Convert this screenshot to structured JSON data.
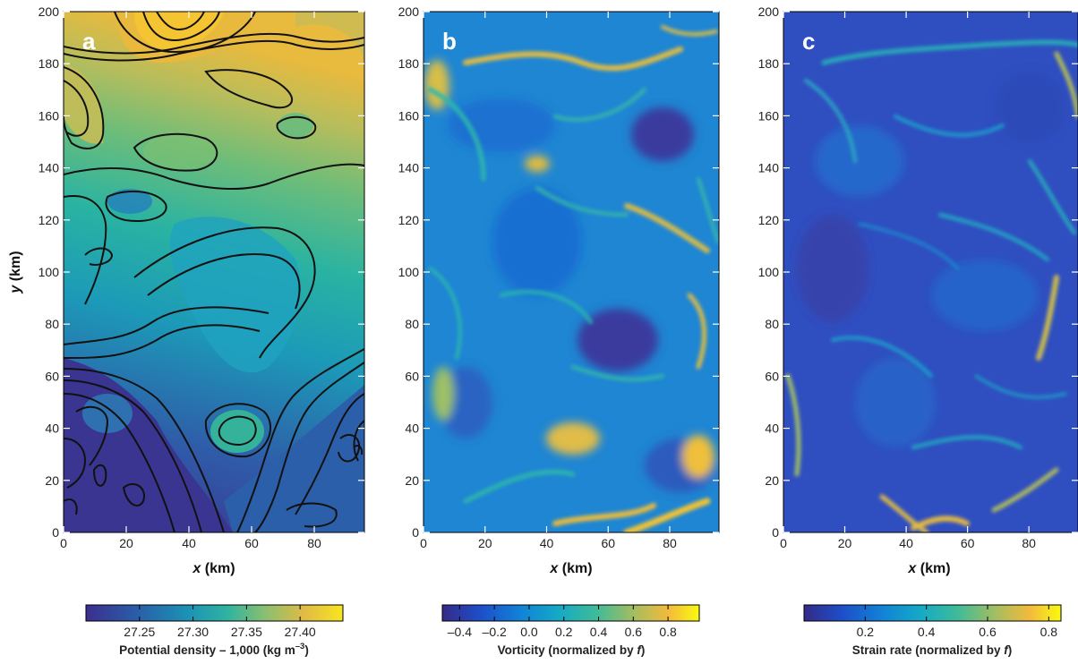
{
  "chart_data": [
    {
      "type": "heatmap",
      "panel_label": "a",
      "xlabel": "x (km)",
      "ylabel": "y (km)",
      "xlim": [
        0,
        96
      ],
      "ylim": [
        0,
        200
      ],
      "x_ticks": [
        0,
        20,
        40,
        60,
        80
      ],
      "y_ticks": [
        0,
        20,
        40,
        60,
        80,
        100,
        120,
        140,
        160,
        180,
        200
      ],
      "contours": true,
      "colormap": "viridis",
      "colorbar": {
        "label_main": "Potential density – 1,000 (kg m",
        "label_sup": "–3",
        "label_end": ")",
        "range": [
          27.2,
          27.44
        ],
        "ticks": [
          "27.25",
          "27.30",
          "27.35",
          "27.40"
        ],
        "tick_values": [
          27.25,
          27.3,
          27.35,
          27.4
        ]
      }
    },
    {
      "type": "heatmap",
      "panel_label": "b",
      "xlabel": "x (km)",
      "xlim": [
        0,
        96
      ],
      "ylim": [
        0,
        200
      ],
      "x_ticks": [
        0,
        20,
        40,
        60,
        80
      ],
      "y_ticks": [
        0,
        20,
        40,
        60,
        80,
        100,
        120,
        140,
        160,
        180,
        200
      ],
      "colormap": "parula",
      "colorbar": {
        "label_main": "Vorticity (normalized by ",
        "label_var": "f",
        "label_end": ")",
        "range": [
          -0.5,
          0.98
        ],
        "ticks": [
          "–0.4",
          "–0.2",
          "0.0",
          "0.2",
          "0.4",
          "0.6",
          "0.8"
        ],
        "tick_values": [
          -0.4,
          -0.2,
          0.0,
          0.2,
          0.4,
          0.6,
          0.8
        ]
      }
    },
    {
      "type": "heatmap",
      "panel_label": "c",
      "xlabel": "x (km)",
      "xlim": [
        0,
        96
      ],
      "ylim": [
        0,
        200
      ],
      "x_ticks": [
        0,
        20,
        40,
        60,
        80
      ],
      "y_ticks": [
        0,
        20,
        40,
        60,
        80,
        100,
        120,
        140,
        160,
        180,
        200
      ],
      "colormap": "parula",
      "colorbar": {
        "label_main": "Strain rate (normalized by ",
        "label_var": "f",
        "label_end": ")",
        "range": [
          0.0,
          0.84
        ],
        "ticks": [
          "0.2",
          "0.4",
          "0.6",
          "0.8"
        ],
        "tick_values": [
          0.2,
          0.4,
          0.6,
          0.8
        ]
      }
    }
  ]
}
